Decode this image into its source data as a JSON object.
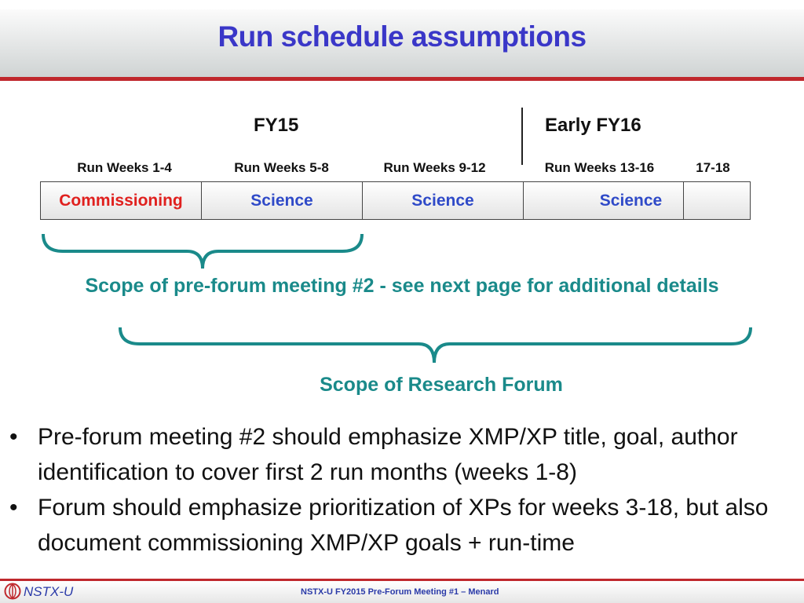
{
  "title": "Run schedule assumptions",
  "periods": [
    "FY15",
    "Early FY16"
  ],
  "weeks": [
    "Run Weeks 1-4",
    "Run Weeks 5-8",
    "Run Weeks 9-12",
    "Run Weeks 13-16",
    "17-18"
  ],
  "phases": [
    "Commissioning",
    "Science",
    "Science",
    "Science",
    ""
  ],
  "colors": {
    "commissioning": "#e0201e",
    "science": "#2f4ac8",
    "scope": "#1a8a8a",
    "title": "#3a37c8",
    "accent_bar": "#c0282d"
  },
  "scope1": "Scope of pre-forum meeting #2 - see next page for additional details",
  "scope2": "Scope of Research Forum",
  "bullets": [
    "Pre-forum meeting #2 should emphasize XMP/XP title, goal, author identification to cover first 2 run months (weeks 1-8)",
    "Forum should emphasize prioritization of XPs for weeks 3-18, but also document commissioning XMP/XP goals + run-time"
  ],
  "footer": {
    "logo": "NSTX-U",
    "center": "NSTX-U FY2015 Pre-Forum Meeting #1 – Menard"
  }
}
